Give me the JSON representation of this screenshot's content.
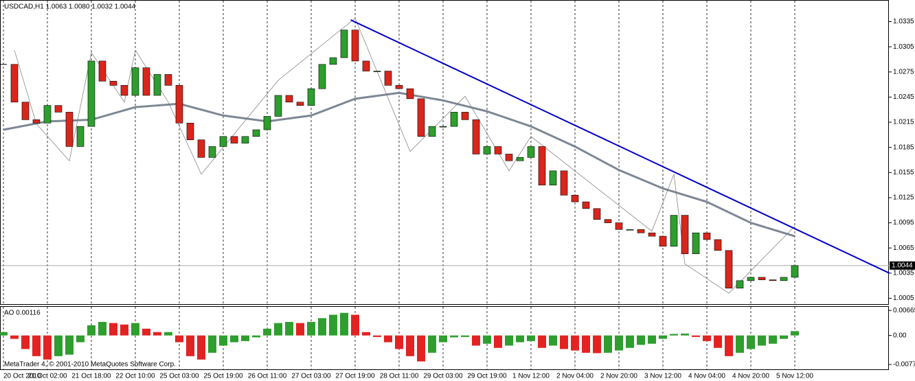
{
  "chart_data": [
    {
      "type": "candlestick",
      "title": "USDCAD,H1  1.0063 1.0080 1.0032 1.0044",
      "categories": [
        "20 Oct 2010",
        null,
        null,
        null,
        "21 Oct 02:00",
        null,
        null,
        null,
        "21 Oct 18:00",
        null,
        null,
        null,
        "22 Oct 10:00",
        null,
        null,
        null,
        "25 Oct 03:00",
        null,
        null,
        null,
        "25 Oct 19:00",
        null,
        null,
        null,
        "26 Oct 11:00",
        null,
        null,
        null,
        "27 Oct 03:00",
        null,
        null,
        null,
        "27 Oct 19:00",
        null,
        null,
        null,
        "28 Oct 11:00",
        null,
        null,
        null,
        "29 Oct 03:00",
        null,
        null,
        null,
        "29 Oct 19:00",
        null,
        null,
        null,
        "1 Nov 12:00",
        null,
        null,
        null,
        "2 Nov 04:00",
        null,
        null,
        null,
        "2 Nov 20:00",
        null,
        null,
        null,
        "3 Nov 12:00",
        null,
        null,
        null,
        "4 Nov 04:00",
        null,
        null,
        null,
        "4 Nov 20:00",
        null,
        null,
        null,
        "5 Nov 12:00"
      ],
      "close": [
        1.0284,
        1.0239,
        1.0218,
        1.0214,
        1.0235,
        1.0227,
        1.0186,
        1.021,
        1.0288,
        1.0264,
        1.0259,
        1.0247,
        1.028,
        1.0247,
        1.0272,
        1.0259,
        1.0214,
        1.0194,
        1.0173,
        1.0186,
        1.0198,
        1.019,
        1.0198,
        1.0206,
        1.0222,
        1.0247,
        1.0239,
        1.0235,
        1.0255,
        1.0284,
        1.0292,
        1.0325,
        1.0288,
        1.0276,
        1.0276,
        1.0259,
        1.0255,
        1.0243,
        1.0198,
        1.021,
        1.021,
        1.0227,
        1.0218,
        1.0177,
        1.0186,
        1.0177,
        1.0169,
        1.0173,
        1.0186,
        1.014,
        1.0157,
        1.0128,
        1.012,
        1.0112,
        1.0099,
        1.0095,
        1.0087,
        1.0087,
        1.0083,
        1.0079,
        1.0067,
        1.0104,
        1.0058,
        1.0083,
        1.0075,
        1.0062,
        1.0017,
        1.0026,
        1.003,
        1.0027,
        1.0026,
        1.003,
        1.0044
      ],
      "up_color": "#2e9e2e",
      "down_color": "#d9261c",
      "ma": {
        "color": "#7d8794",
        "x": [
          0,
          4,
          8,
          12,
          16,
          20,
          24,
          28,
          32,
          36,
          40,
          44,
          48,
          52,
          56,
          60,
          64,
          68,
          72
        ],
        "values": [
          1.0206,
          1.0216,
          1.0218,
          1.0233,
          1.0237,
          1.0223,
          1.0216,
          1.0223,
          1.0243,
          1.025,
          1.0241,
          1.0228,
          1.021,
          1.0186,
          1.0158,
          1.0136,
          1.012,
          1.0095,
          1.0079
        ]
      },
      "zigzag": {
        "color": "#777777",
        "x": [
          1,
          3,
          6,
          8,
          11,
          12,
          15,
          18,
          25,
          32,
          37,
          42,
          46,
          48,
          59,
          61,
          62,
          66,
          72
        ],
        "values": [
          1.0301,
          1.0213,
          1.0169,
          1.0298,
          1.0239,
          1.0301,
          1.0239,
          1.0153,
          1.0265,
          1.0339,
          1.018,
          1.0246,
          1.0157,
          1.0198,
          1.0085,
          1.0153,
          1.0046,
          1.0011,
          1.0091
        ]
      },
      "trendline": {
        "color": "#0000cc",
        "x": [
          31.6,
          80.6
        ],
        "values": [
          1.0337,
          1.0035
        ]
      },
      "current_price": 1.0044,
      "ylim": [
        0.9998,
        1.036
      ],
      "yticks": [
        1.0335,
        1.0305,
        1.0275,
        1.0245,
        1.0215,
        1.0185,
        1.0155,
        1.0125,
        1.0095,
        1.0065,
        1.0035,
        1.0005
      ],
      "grid": true
    },
    {
      "type": "bar",
      "title": "AO 0.00116",
      "values": [
        0.0009,
        -0.0009,
        -0.0036,
        -0.0055,
        -0.0064,
        -0.0055,
        -0.0051,
        -0.0018,
        0.0027,
        0.0036,
        0.0033,
        0.0029,
        0.0033,
        0.0018,
        0.0009,
        0.0009,
        -0.0018,
        -0.0055,
        -0.0064,
        -0.0046,
        -0.0027,
        -0.0018,
        -0.0015,
        -0.0005,
        0.0018,
        0.0033,
        0.0036,
        0.0033,
        0.0036,
        0.0046,
        0.0055,
        0.006,
        0.0055,
        0.0009,
        -0.0004,
        -0.0018,
        -0.0036,
        -0.0055,
        -0.0069,
        -0.0046,
        -0.0018,
        -0.0005,
        -0.0004,
        -0.0027,
        -0.0022,
        -0.0033,
        -0.0027,
        -0.0018,
        -0.0015,
        -0.0033,
        -0.0027,
        -0.0036,
        -0.004,
        -0.0046,
        -0.0047,
        -0.0046,
        -0.004,
        -0.0033,
        -0.0025,
        -0.0022,
        -0.0009,
        0.0004,
        0.0005,
        -0.0004,
        -0.0015,
        -0.0033,
        -0.0055,
        -0.0046,
        -0.0036,
        -0.0027,
        -0.0022,
        -0.0009,
        0.00116
      ],
      "up_color": "#2e9e2e",
      "down_color": "#e32222",
      "ylim": [
        -0.009,
        0.0076
      ],
      "yticks": [
        0.00665,
        {
          "value": 0,
          "label": "0.00"
        },
        -0.00771
      ]
    }
  ],
  "footer": "MetaTrader 4, © 2001-2010 MetaQuotes Software Corp."
}
